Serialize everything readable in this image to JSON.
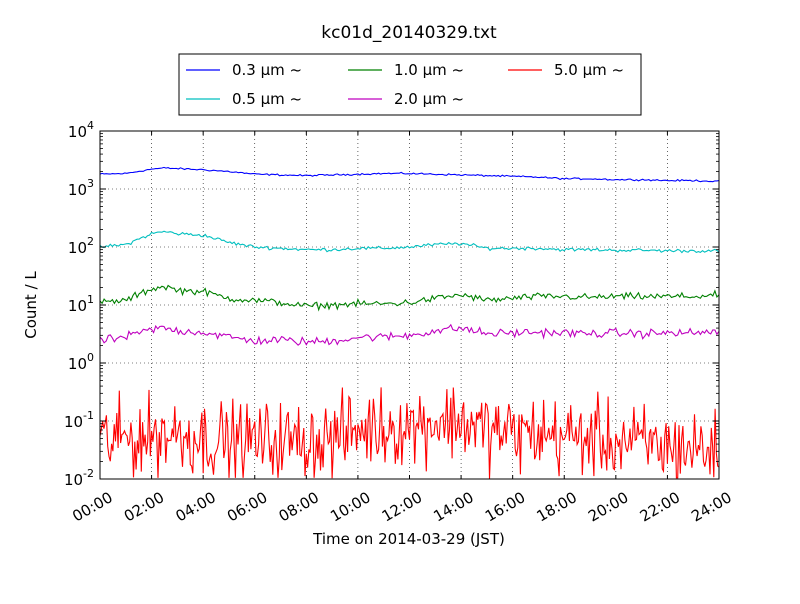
{
  "chart_data": {
    "type": "line",
    "title": "kc01d_20140329.txt",
    "xlabel": "Time on 2014-03-29 (JST)",
    "ylabel": "Count / L",
    "y_scale": "log",
    "ylim": [
      0.01,
      10000
    ],
    "xlim": [
      "00:00",
      "24:00"
    ],
    "x_ticks": [
      "00:00",
      "02:00",
      "04:00",
      "06:00",
      "08:00",
      "10:00",
      "12:00",
      "14:00",
      "16:00",
      "18:00",
      "20:00",
      "22:00",
      "24:00"
    ],
    "y_ticks": [
      {
        "base": "10",
        "exp": "-2",
        "value": 0.01
      },
      {
        "base": "10",
        "exp": "-1",
        "value": 0.1
      },
      {
        "base": "10",
        "exp": "0",
        "value": 1
      },
      {
        "base": "10",
        "exp": "1",
        "value": 10
      },
      {
        "base": "10",
        "exp": "2",
        "value": 100
      },
      {
        "base": "10",
        "exp": "3",
        "value": 1000
      },
      {
        "base": "10",
        "exp": "4",
        "value": 10000
      }
    ],
    "grid": true,
    "legend_position": "top-center",
    "x_hours": [
      0,
      1,
      2,
      2.5,
      3,
      4,
      5,
      6,
      7,
      8,
      9,
      10,
      11,
      12,
      13,
      14,
      15,
      16,
      17,
      18,
      19,
      20,
      21,
      22,
      23,
      24
    ],
    "series": [
      {
        "name": "0.3 μm ~",
        "color": "#0000ff",
        "noise": 0.01,
        "values": [
          1800,
          1850,
          2200,
          2300,
          2250,
          2150,
          2000,
          1800,
          1750,
          1700,
          1750,
          1800,
          1850,
          1850,
          1800,
          1750,
          1700,
          1650,
          1600,
          1500,
          1500,
          1450,
          1450,
          1400,
          1400,
          1350
        ]
      },
      {
        "name": "0.5 μm ~",
        "color": "#00bfbf",
        "noise": 0.02,
        "values": [
          100,
          110,
          170,
          185,
          170,
          160,
          120,
          100,
          95,
          90,
          90,
          95,
          95,
          100,
          110,
          115,
          95,
          95,
          95,
          90,
          90,
          88,
          88,
          86,
          86,
          85
        ]
      },
      {
        "name": "1.0 μm ~",
        "color": "#008000",
        "noise": 0.04,
        "values": [
          11,
          12,
          19,
          21,
          18,
          17,
          13,
          12,
          11,
          9.5,
          10,
          10.5,
          10.5,
          11,
          13,
          15,
          12,
          13,
          14,
          14,
          13.5,
          14,
          14,
          14,
          14,
          15
        ]
      },
      {
        "name": "2.0 μm ~",
        "color": "#bf00bf",
        "noise": 0.05,
        "values": [
          2.4,
          2.8,
          3.8,
          4.0,
          3.6,
          3.4,
          2.8,
          2.4,
          2.5,
          2.3,
          2.4,
          2.8,
          2.8,
          3.0,
          3.6,
          4.0,
          3.2,
          3.3,
          3.4,
          3.3,
          3.2,
          3.3,
          3.2,
          3.3,
          3.3,
          3.5
        ]
      },
      {
        "name": "5.0 μm ~",
        "color": "#ff0000",
        "noise": 0.45,
        "values": [
          0.045,
          0.05,
          0.055,
          0.06,
          0.06,
          0.05,
          0.045,
          0.045,
          0.045,
          0.045,
          0.05,
          0.07,
          0.08,
          0.08,
          0.1,
          0.1,
          0.07,
          0.06,
          0.06,
          0.055,
          0.05,
          0.045,
          0.04,
          0.035,
          0.035,
          0.03
        ]
      }
    ]
  }
}
